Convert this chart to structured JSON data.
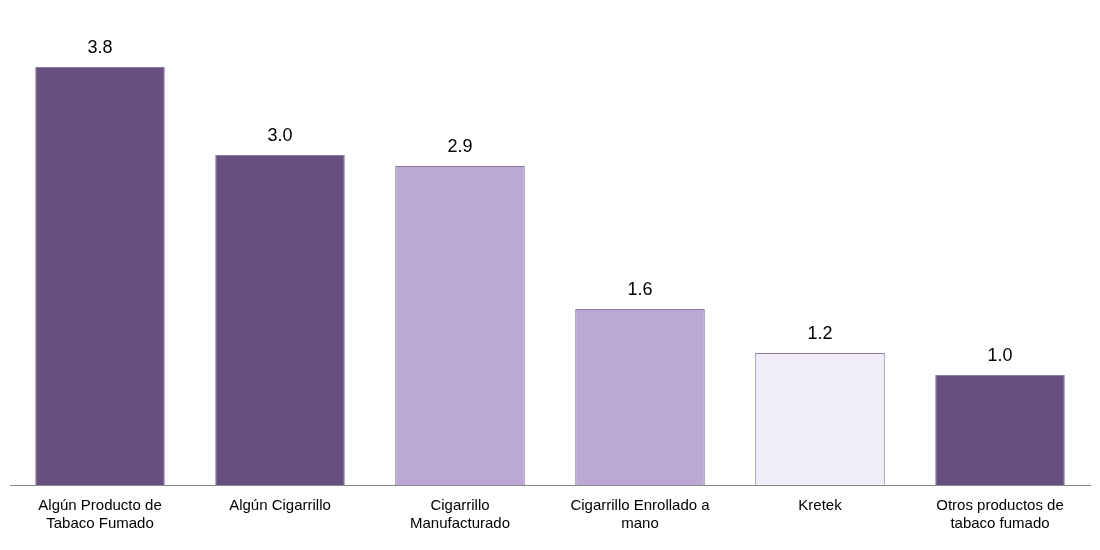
{
  "chart_data": {
    "type": "bar",
    "categories": [
      "Algún Producto de Tabaco Fumado",
      "Algún Cigarrillo",
      "Cigarrillo Manufacturado",
      "Cigarrillo Enrollado a mano",
      "Kretek",
      "Otros productos de tabaco fumado"
    ],
    "values": [
      3.8,
      3.0,
      2.9,
      1.6,
      1.2,
      1.0
    ],
    "colors": [
      "#67507f",
      "#67507f",
      "#bba9d3",
      "#bba9d3",
      "#f1edf6",
      "#67507f"
    ],
    "value_labels": [
      "3.8",
      "3.0",
      "2.9",
      "1.6",
      "1.2",
      "1.0"
    ],
    "tick_labels": "x",
    "grid": false,
    "legend": false
  }
}
